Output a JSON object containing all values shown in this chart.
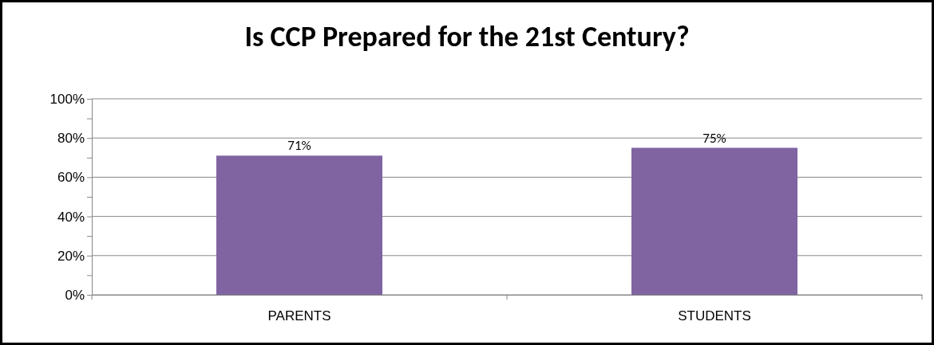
{
  "chart_data": {
    "type": "bar",
    "title": "Is CCP Prepared for the 21st Century?",
    "categories": [
      "PARENTS",
      "STUDENTS"
    ],
    "values": [
      71,
      75
    ],
    "value_labels": [
      "71%",
      "75%"
    ],
    "color": "#8064a2",
    "ylim": [
      0,
      100
    ],
    "yticks": [
      {
        "value": 0,
        "label": "0%"
      },
      {
        "value": 10,
        "label": null
      },
      {
        "value": 20,
        "label": "20%"
      },
      {
        "value": 30,
        "label": null
      },
      {
        "value": 40,
        "label": "40%"
      },
      {
        "value": 50,
        "label": null
      },
      {
        "value": 60,
        "label": "60%"
      },
      {
        "value": 70,
        "label": null
      },
      {
        "value": 80,
        "label": "80%"
      },
      {
        "value": 90,
        "label": null
      },
      {
        "value": 100,
        "label": "100%"
      }
    ],
    "grid": "y"
  }
}
